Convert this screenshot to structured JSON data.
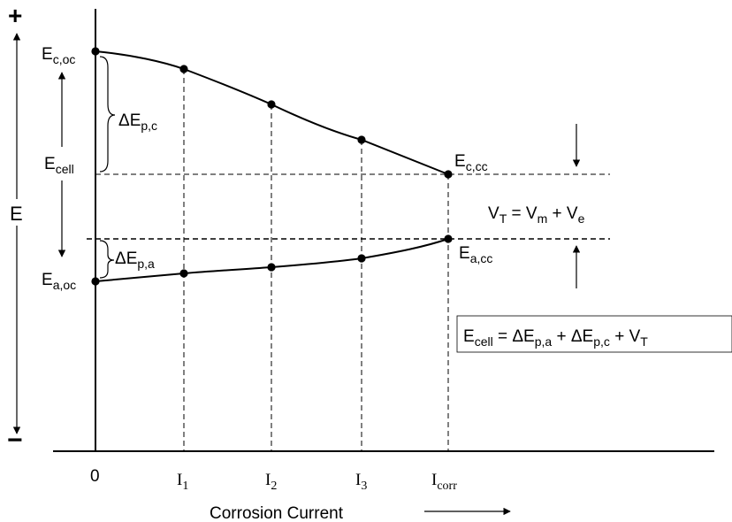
{
  "axis": {
    "plus": "+",
    "minus": "−",
    "y_label": "E",
    "x_label": "Corrosion Current",
    "ticks": [
      "0",
      "I1",
      "I2",
      "I3",
      "Icorr"
    ]
  },
  "labels": {
    "e_c_oc": "Ec,oc",
    "e_a_oc": "Ea,oc",
    "e_c_cc": "Ec,cc",
    "e_a_cc": "Ea,cc",
    "e_cell": "Ecell",
    "delta_ep_c": "ΔEp,c",
    "delta_ep_a": "ΔEp,a",
    "vt_equation": "VT = Vm + Ve",
    "ecell_equation": "Ecell = ΔEp,a + ΔEp,c + VT"
  }
}
